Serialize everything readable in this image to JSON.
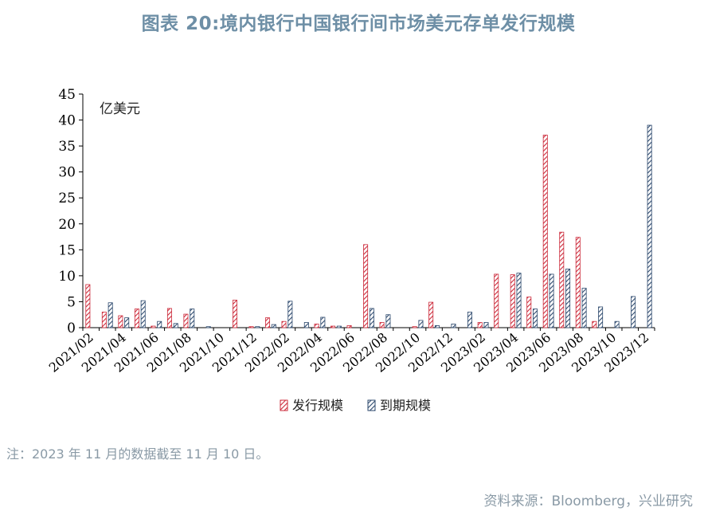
{
  "title": "图表 20:境内银行中国银行间市场美元存单发行规模",
  "note": "注：2023 年 11 月的数据截至 11 月 10 日。",
  "source": "资料来源：Bloomberg，兴业研究",
  "colors": {
    "issuance": "#cc2b3b",
    "maturity": "#2e4a6e",
    "title": "#6e8fa6",
    "note": "#8a9aa6"
  },
  "chart_data": {
    "type": "bar",
    "unit_label": "亿美元",
    "ylim": [
      0,
      45
    ],
    "yticks": [
      0,
      5,
      10,
      15,
      20,
      25,
      30,
      35,
      40,
      45
    ],
    "grid": false,
    "legend_position": "bottom-center",
    "categories": [
      "2021/02",
      "2021/03",
      "2021/04",
      "2021/05",
      "2021/06",
      "2021/07",
      "2021/08",
      "2021/09",
      "2021/10",
      "2021/11",
      "2021/12",
      "2022/01",
      "2022/02",
      "2022/03",
      "2022/04",
      "2022/05",
      "2022/06",
      "2022/07",
      "2022/08",
      "2022/09",
      "2022/10",
      "2022/11",
      "2022/12",
      "2023/01",
      "2023/02",
      "2023/03",
      "2023/04",
      "2023/05",
      "2023/06",
      "2023/07",
      "2023/08",
      "2023/09",
      "2023/10",
      "2023/11",
      "2023/12"
    ],
    "tick_labels": [
      "2021/02",
      "2021/04",
      "2021/06",
      "2021/08",
      "2021/10",
      "2021/12",
      "2022/02",
      "2022/04",
      "2022/06",
      "2022/08",
      "2022/10",
      "2022/12",
      "2023/02",
      "2023/04",
      "2023/06",
      "2023/08",
      "2023/10",
      "2023/12"
    ],
    "series": [
      {
        "name": "发行规模",
        "values": [
          8.3,
          3.0,
          2.3,
          3.6,
          0.3,
          3.7,
          2.6,
          0,
          0,
          5.3,
          0.2,
          1.9,
          1.2,
          0,
          0.7,
          0.3,
          0.4,
          16.0,
          1.0,
          0,
          0.2,
          4.9,
          0,
          0,
          1.0,
          10.3,
          10.2,
          5.9,
          37.1,
          18.4,
          17.4,
          1.2,
          0,
          0,
          0
        ]
      },
      {
        "name": "到期规模",
        "values": [
          0,
          4.8,
          1.9,
          5.2,
          1.2,
          0.8,
          3.6,
          0.2,
          0,
          0,
          0.2,
          0.6,
          5.1,
          1.0,
          2.0,
          0.3,
          0,
          3.7,
          2.5,
          0,
          1.4,
          0.4,
          0.7,
          3.0,
          1.0,
          0,
          10.5,
          3.6,
          10.3,
          11.3,
          7.6,
          4.0,
          1.2,
          6.0,
          39.0
        ]
      }
    ]
  }
}
